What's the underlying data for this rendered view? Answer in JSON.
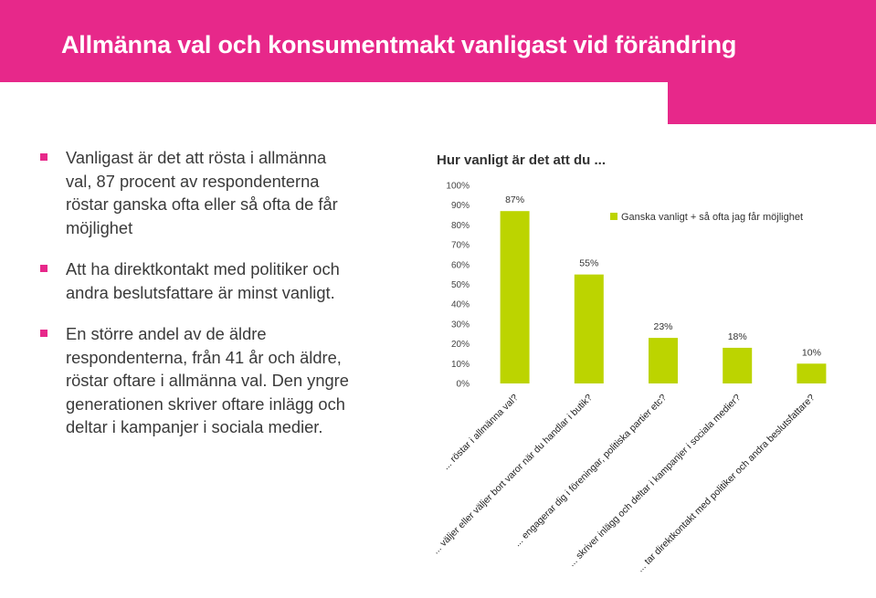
{
  "title": "Allmänna val och konsumentmakt vanligast vid förändring",
  "accent_color": "#e7288a",
  "bullets": [
    "Vanligast är det att rösta i allmänna val, 87 procent av respondenterna röstar ganska ofta eller så ofta de får möjlighet",
    "Att ha direktkontakt med politiker och andra beslutsfattare är minst vanligt.",
    "En större andel av de äldre respondenterna, från 41 år och äldre, röstar oftare i allmänna val. Den yngre generationen skriver oftare inlägg och deltar i kampanjer i sociala medier."
  ],
  "chart_data": {
    "type": "bar",
    "title": "Hur vanligt är det att du ...",
    "categories": [
      "... röstar i allmänna val?",
      "... väljer eller väljer bort varor när du handlar i butik?",
      "... engagerar dig i föreningar, politiska partier etc?",
      "... skriver inlägg och deltar i kampanjer i sociala medier?",
      "... tar direktkontakt med politiker och andra beslutsfattare?"
    ],
    "series": [
      {
        "name": "Ganska vanligt + så ofta jag får möjlighet",
        "values": [
          87,
          55,
          23,
          18,
          10
        ],
        "color": "#bcd400"
      }
    ],
    "data_labels": [
      "87%",
      "55%",
      "23%",
      "18%",
      "10%"
    ],
    "yticks": [
      "0%",
      "10%",
      "20%",
      "30%",
      "40%",
      "50%",
      "60%",
      "70%",
      "80%",
      "90%",
      "100%"
    ],
    "ylim": [
      0,
      100
    ],
    "grid": false,
    "legend_position": "top-right"
  }
}
